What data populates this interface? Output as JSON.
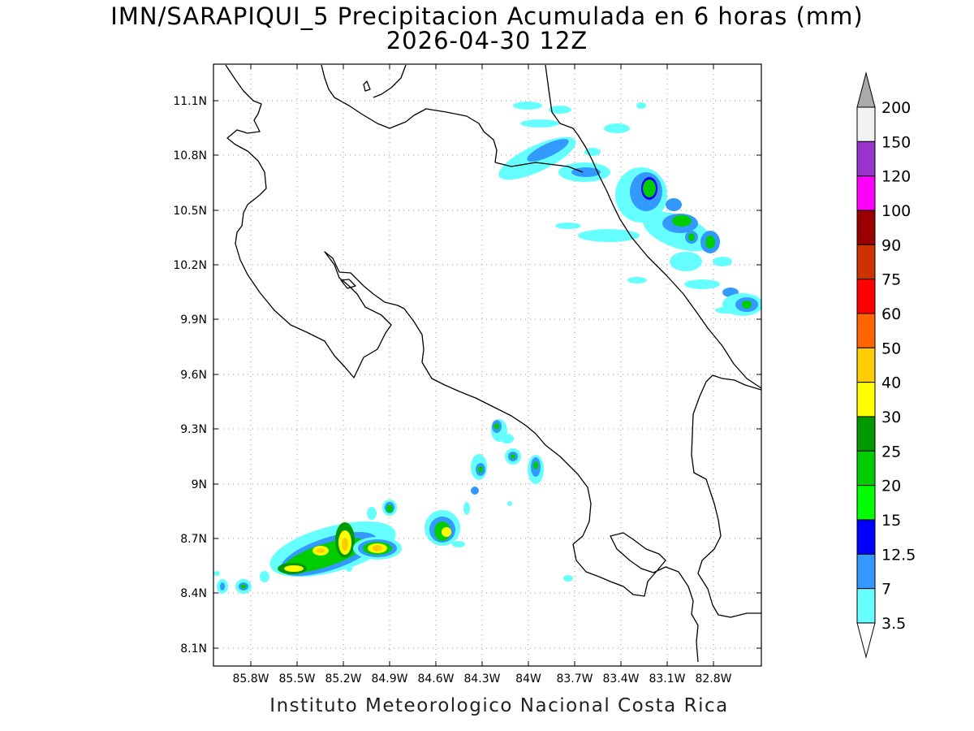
{
  "title_line1": "IMN/SARAPIQUI_5 Precipitacion Acumulada en 6 horas (mm)",
  "title_line2": "2026-04-30 12Z",
  "credit": "Instituto Meteorologico Nacional Costa Rica",
  "map": {
    "lon_ticks": [
      "85.8W",
      "85.5W",
      "85.2W",
      "84.9W",
      "84.6W",
      "84.3W",
      "84W",
      "83.7W",
      "83.4W",
      "83.1W",
      "82.8W"
    ],
    "lat_ticks": [
      "11.1N",
      "10.8N",
      "10.5N",
      "10.2N",
      "9.9N",
      "9.6N",
      "9.3N",
      "9N",
      "8.7N",
      "8.4N",
      "8.1N"
    ]
  },
  "colorbar": {
    "labels": [
      "200",
      "150",
      "120",
      "100",
      "90",
      "75",
      "60",
      "50",
      "40",
      "30",
      "25",
      "20",
      "15",
      "12.5",
      "7",
      "3.5"
    ],
    "colors": [
      "#f2f2f2",
      "#9933cc",
      "#ff00ff",
      "#990000",
      "#cc3300",
      "#ff0000",
      "#ff6600",
      "#ffcc00",
      "#ffff00",
      "#009900",
      "#00cc00",
      "#00ff00",
      "#0000ff",
      "#3399ff",
      "#66ffff"
    ],
    "cap_top_color": "#aaaaaa",
    "cap_bottom_color": "#ffffff"
  },
  "precip_scale": {
    "3.5": "#66ffff",
    "7": "#3399ff",
    "12.5": "#0000ff",
    "15": "#00ff00",
    "20": "#00cc00",
    "25": "#009900",
    "30": "#ffff00",
    "40": "#ffcc00",
    "50": "#ff6600"
  }
}
